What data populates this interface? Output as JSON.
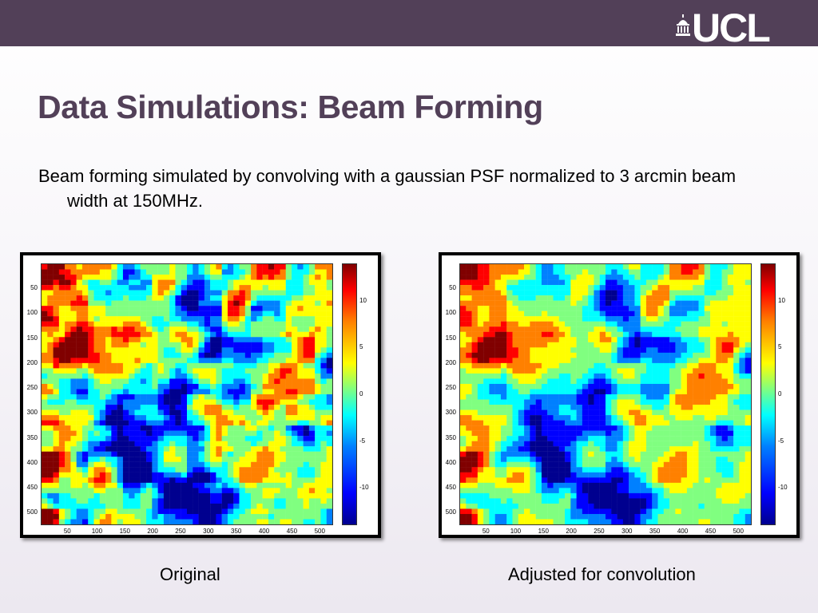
{
  "header": {
    "logo_text": "UCL",
    "logo_icon": "portico-dome-icon",
    "bar_color": "#524058"
  },
  "slide": {
    "title": "Data Simulations: Beam Forming",
    "body": "Beam forming simulated by convolving with a gaussian PSF normalized to 3 arcmin beam width at 150MHz."
  },
  "figures": [
    {
      "caption": "Original",
      "y_ticks": [
        "50",
        "100",
        "150",
        "200",
        "250",
        "300",
        "350",
        "400",
        "450",
        "500"
      ],
      "x_ticks": [
        "50",
        "100",
        "150",
        "200",
        "250",
        "300",
        "350",
        "400",
        "450",
        "500"
      ],
      "colorbar_ticks": [
        "10",
        "5",
        "0",
        "-5",
        "-10"
      ]
    },
    {
      "caption": "Adjusted for convolution",
      "y_ticks": [
        "50",
        "100",
        "150",
        "200",
        "250",
        "300",
        "350",
        "400",
        "450",
        "500"
      ],
      "x_ticks": [
        "50",
        "100",
        "150",
        "200",
        "250",
        "300",
        "350",
        "400",
        "450",
        "500"
      ],
      "colorbar_ticks": [
        "10",
        "5",
        "0",
        "-5",
        "-10"
      ]
    }
  ],
  "colormap": [
    "#00008f",
    "#0000ff",
    "#0080ff",
    "#00ffff",
    "#80ff80",
    "#ffff00",
    "#ff8000",
    "#ff0000",
    "#800000"
  ]
}
